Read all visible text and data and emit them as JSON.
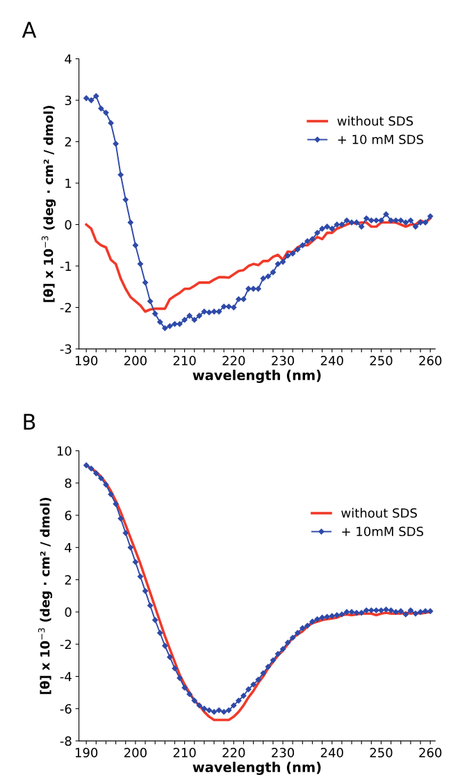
{
  "chart_data": [
    {
      "type": "line",
      "title": "A",
      "xlabel": "wavelength (nm)",
      "ylabel": "[θ] x 10$^{−3}$ (deg · cm² / dmol)",
      "legend": "right",
      "grid": false,
      "x": [
        190,
        191,
        192,
        193,
        194,
        195,
        196,
        197,
        198,
        199,
        200,
        201,
        202,
        203,
        204,
        205,
        206,
        207,
        208,
        209,
        210,
        211,
        212,
        213,
        214,
        215,
        216,
        217,
        218,
        219,
        220,
        221,
        222,
        223,
        224,
        225,
        226,
        227,
        228,
        229,
        230,
        231,
        232,
        233,
        234,
        235,
        236,
        237,
        238,
        239,
        240,
        241,
        242,
        243,
        244,
        245,
        246,
        247,
        248,
        249,
        250,
        251,
        252,
        253,
        254,
        255,
        256,
        257,
        258,
        259,
        260
      ],
      "xlim": [
        188.5,
        261
      ],
      "xticks": [
        190,
        {
          "value": 192,
          "label": null
        },
        {
          "value": 194,
          "label": null
        },
        {
          "value": 196,
          "label": null
        },
        {
          "value": 198,
          "label": null
        },
        200,
        {
          "value": 202,
          "label": null
        },
        {
          "value": 204,
          "label": null
        },
        {
          "value": 206,
          "label": null
        },
        {
          "value": 208,
          "label": null
        },
        210,
        {
          "value": 212,
          "label": null
        },
        {
          "value": 214,
          "label": null
        },
        {
          "value": 216,
          "label": null
        },
        {
          "value": 218,
          "label": null
        },
        220,
        {
          "value": 222,
          "label": null
        },
        {
          "value": 224,
          "label": null
        },
        {
          "value": 226,
          "label": null
        },
        {
          "value": 228,
          "label": null
        },
        230,
        {
          "value": 232,
          "label": null
        },
        {
          "value": 234,
          "label": null
        },
        {
          "value": 236,
          "label": null
        },
        {
          "value": 238,
          "label": null
        },
        240,
        {
          "value": 242,
          "label": null
        },
        {
          "value": 244,
          "label": null
        },
        {
          "value": 246,
          "label": null
        },
        {
          "value": 248,
          "label": null
        },
        250,
        {
          "value": 252,
          "label": null
        },
        {
          "value": 254,
          "label": null
        },
        {
          "value": 256,
          "label": null
        },
        {
          "value": 258,
          "label": null
        },
        260
      ],
      "ylim": [
        -3,
        4
      ],
      "yticks": [
        -3,
        -2,
        -1,
        0,
        1,
        2,
        3,
        4
      ],
      "series": [
        {
          "name": "without SDS",
          "color": "#f03a2a",
          "marker": "none",
          "values": [
            0.0,
            -0.1,
            -0.4,
            -0.5,
            -0.55,
            -0.85,
            -0.95,
            -1.3,
            -1.55,
            -1.75,
            -1.85,
            -1.95,
            -2.1,
            -2.05,
            -2.03,
            -2.03,
            -2.03,
            -1.8,
            -1.72,
            -1.65,
            -1.55,
            -1.55,
            -1.48,
            -1.4,
            -1.4,
            -1.4,
            -1.33,
            -1.27,
            -1.27,
            -1.28,
            -1.2,
            -1.12,
            -1.1,
            -1.0,
            -0.95,
            -0.98,
            -0.88,
            -0.88,
            -0.78,
            -0.73,
            -0.85,
            -0.65,
            -0.67,
            -0.55,
            -0.5,
            -0.5,
            -0.4,
            -0.3,
            -0.35,
            -0.2,
            -0.2,
            -0.1,
            -0.05,
            0.0,
            0.05,
            0.02,
            0.05,
            0.05,
            -0.05,
            -0.05,
            0.05,
            0.05,
            0.05,
            0.05,
            0.0,
            -0.05,
            0.0,
            0.0,
            0.1,
            0.05,
            0.15
          ]
        },
        {
          "name": "+ 10 mM SDS",
          "color": "#2f4aa8",
          "marker": "diamond",
          "values": [
            3.05,
            3.0,
            3.1,
            2.8,
            2.7,
            2.45,
            1.95,
            1.2,
            0.6,
            0.05,
            -0.5,
            -0.95,
            -1.4,
            -1.85,
            -2.15,
            -2.35,
            -2.5,
            -2.45,
            -2.4,
            -2.4,
            -2.3,
            -2.2,
            -2.3,
            -2.2,
            -2.1,
            -2.12,
            -2.1,
            -2.1,
            -1.98,
            -1.98,
            -2.0,
            -1.8,
            -1.8,
            -1.55,
            -1.55,
            -1.55,
            -1.3,
            -1.25,
            -1.15,
            -0.95,
            -0.9,
            -0.75,
            -0.7,
            -0.6,
            -0.5,
            -0.4,
            -0.35,
            -0.2,
            -0.1,
            -0.05,
            -0.1,
            0.0,
            0.0,
            0.1,
            0.05,
            0.05,
            -0.05,
            0.15,
            0.1,
            0.1,
            0.1,
            0.25,
            0.1,
            0.1,
            0.1,
            0.05,
            0.1,
            -0.05,
            0.05,
            0.05,
            0.2
          ]
        }
      ]
    },
    {
      "type": "line",
      "title": "B",
      "xlabel": "wavelength (nm)",
      "ylabel": "[θ] x 10$^{−3}$ (deg · cm² / dmol)",
      "legend": "right",
      "grid": false,
      "x": [
        190,
        191,
        192,
        193,
        194,
        195,
        196,
        197,
        198,
        199,
        200,
        201,
        202,
        203,
        204,
        205,
        206,
        207,
        208,
        209,
        210,
        211,
        212,
        213,
        214,
        215,
        216,
        217,
        218,
        219,
        220,
        221,
        222,
        223,
        224,
        225,
        226,
        227,
        228,
        229,
        230,
        231,
        232,
        233,
        234,
        235,
        236,
        237,
        238,
        239,
        240,
        241,
        242,
        243,
        244,
        245,
        246,
        247,
        248,
        249,
        250,
        251,
        252,
        253,
        254,
        255,
        256,
        257,
        258,
        259,
        260
      ],
      "xlim": [
        188.5,
        261
      ],
      "xticks": [
        190,
        {
          "value": 192,
          "label": null
        },
        {
          "value": 194,
          "label": null
        },
        {
          "value": 196,
          "label": null
        },
        {
          "value": 198,
          "label": null
        },
        200,
        {
          "value": 202,
          "label": null
        },
        {
          "value": 204,
          "label": null
        },
        {
          "value": 206,
          "label": null
        },
        {
          "value": 208,
          "label": null
        },
        210,
        {
          "value": 212,
          "label": null
        },
        {
          "value": 214,
          "label": null
        },
        {
          "value": 216,
          "label": null
        },
        {
          "value": 218,
          "label": null
        },
        220,
        {
          "value": 222,
          "label": null
        },
        {
          "value": 224,
          "label": null
        },
        {
          "value": 226,
          "label": null
        },
        {
          "value": 228,
          "label": null
        },
        230,
        {
          "value": 232,
          "label": null
        },
        {
          "value": 234,
          "label": null
        },
        {
          "value": 236,
          "label": null
        },
        {
          "value": 238,
          "label": null
        },
        240,
        {
          "value": 242,
          "label": null
        },
        {
          "value": 244,
          "label": null
        },
        {
          "value": 246,
          "label": null
        },
        {
          "value": 248,
          "label": null
        },
        250,
        {
          "value": 252,
          "label": null
        },
        {
          "value": 254,
          "label": null
        },
        {
          "value": 256,
          "label": null
        },
        {
          "value": 258,
          "label": null
        },
        260
      ],
      "ylim": [
        -8,
        10
      ],
      "yticks": [
        -8,
        -6,
        -4,
        -2,
        0,
        2,
        4,
        6,
        8,
        10
      ],
      "series": [
        {
          "name": "without SDS",
          "color": "#f03a2a",
          "marker": "none",
          "values": [
            9.1,
            8.9,
            8.7,
            8.4,
            8.0,
            7.5,
            6.9,
            6.2,
            5.4,
            4.6,
            3.8,
            3.0,
            2.1,
            1.2,
            0.3,
            -0.6,
            -1.5,
            -2.3,
            -3.1,
            -3.9,
            -4.5,
            -5.0,
            -5.5,
            -5.8,
            -6.2,
            -6.5,
            -6.7,
            -6.7,
            -6.7,
            -6.7,
            -6.5,
            -6.2,
            -5.8,
            -5.3,
            -4.9,
            -4.4,
            -4.0,
            -3.5,
            -3.1,
            -2.7,
            -2.4,
            -2.0,
            -1.6,
            -1.4,
            -1.2,
            -0.9,
            -0.7,
            -0.6,
            -0.5,
            -0.45,
            -0.4,
            -0.35,
            -0.2,
            -0.15,
            -0.2,
            -0.15,
            -0.1,
            -0.1,
            -0.1,
            -0.2,
            -0.1,
            -0.05,
            -0.1,
            -0.1,
            -0.1,
            -0.05,
            -0.1,
            -0.05,
            -0.1,
            -0.05,
            0.0
          ]
        },
        {
          "name": "+ 10mM SDS",
          "color": "#2f4aa8",
          "marker": "diamond",
          "values": [
            9.1,
            8.9,
            8.6,
            8.3,
            7.9,
            7.3,
            6.7,
            5.8,
            4.9,
            4.0,
            3.1,
            2.2,
            1.3,
            0.4,
            -0.5,
            -1.3,
            -2.1,
            -2.8,
            -3.5,
            -4.1,
            -4.7,
            -5.1,
            -5.5,
            -5.8,
            -6.0,
            -6.1,
            -6.2,
            -6.1,
            -6.2,
            -6.1,
            -5.8,
            -5.5,
            -5.2,
            -4.8,
            -4.5,
            -4.2,
            -3.8,
            -3.4,
            -3.0,
            -2.6,
            -2.3,
            -1.9,
            -1.6,
            -1.3,
            -1.0,
            -0.85,
            -0.6,
            -0.45,
            -0.35,
            -0.3,
            -0.25,
            -0.2,
            -0.15,
            0.0,
            0.0,
            -0.05,
            -0.05,
            0.1,
            0.1,
            0.1,
            0.1,
            0.15,
            0.1,
            0.0,
            0.05,
            -0.15,
            0.1,
            -0.1,
            0.0,
            0.05,
            0.05
          ]
        }
      ]
    }
  ]
}
